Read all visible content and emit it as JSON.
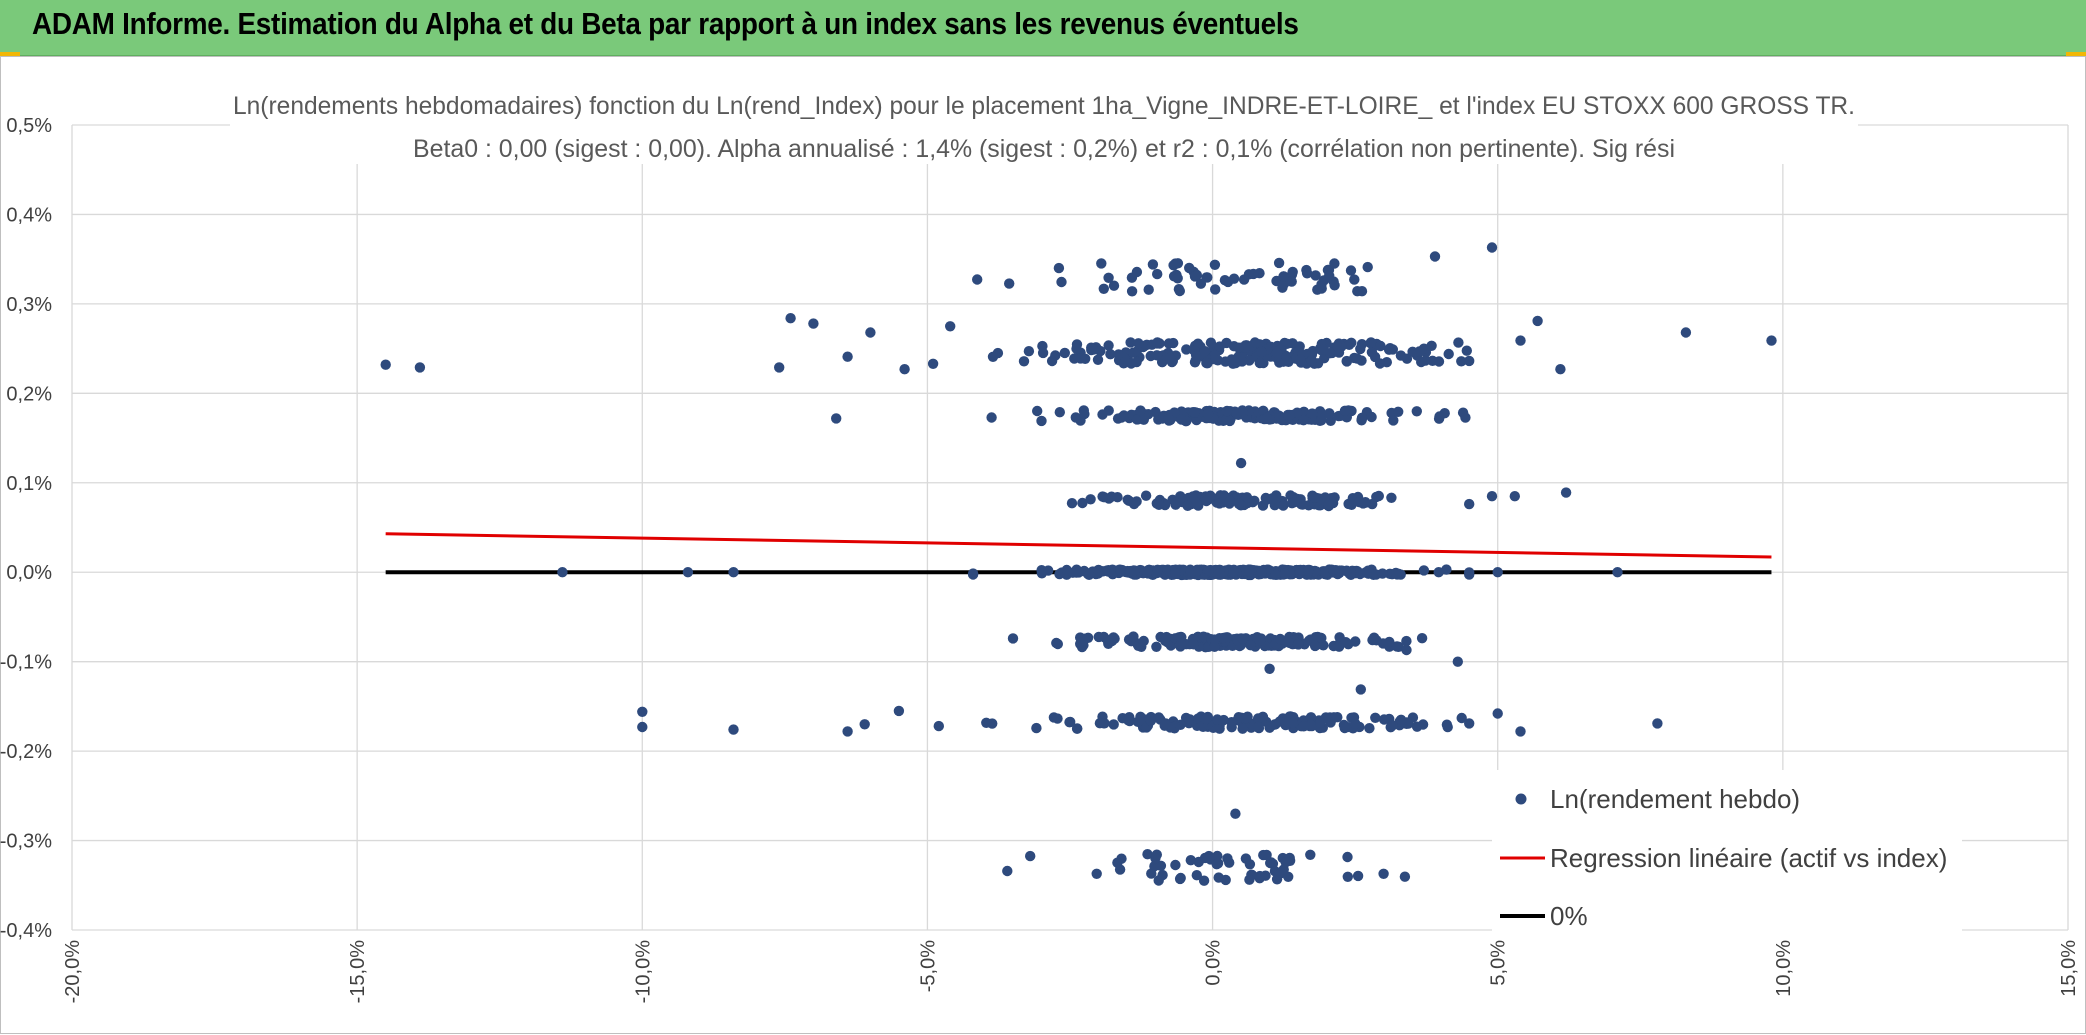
{
  "banner": {
    "title": "ADAM Informe. Estimation du Alpha et du Beta par rapport à un index sans les revenus éventuels",
    "background": "#7ac97a",
    "corner_color": "#f2b705"
  },
  "chart_data": {
    "type": "scatter",
    "title": "Ln(rendements hebdomadaires) fonction du Ln(rend_Index) pour le placement 1ha_Vigne_INDRE-ET-LOIRE_ et l'index EU STOXX 600 GROSS TR.",
    "subtitle": "Beta0 : 0,00 (sigest : 0,00). Alpha annualisé : 1,4% (sigest : 0,2%) et r2 : 0,1% (corrélation non pertinente). Sig rési",
    "xlabel": "",
    "ylabel": "",
    "xlim": [
      -20,
      15
    ],
    "ylim": [
      -0.4,
      0.5
    ],
    "x_ticks": [
      "-20,0%",
      "-15,0%",
      "-10,0%",
      "-5,0%",
      "0,0%",
      "5,0%",
      "10,0%",
      "15,0%"
    ],
    "y_ticks": [
      "0,5%",
      "0,4%",
      "0,3%",
      "0,2%",
      "0,1%",
      "0,0%",
      "-0,1%",
      "-0,2%",
      "-0,3%",
      "-0,4%"
    ],
    "grid": true,
    "legend_position": "bottom-right",
    "series": [
      {
        "name": "Ln(rendement hebdo)",
        "kind": "scatter",
        "color": "#2e4a7d",
        "clusters": [
          {
            "y": 0.0,
            "n": 420,
            "x_sd": 1.4,
            "jitter": 0.003
          },
          {
            "y": 0.08,
            "n": 130,
            "x_sd": 1.4,
            "jitter": 0.006
          },
          {
            "y": 0.175,
            "n": 170,
            "x_sd": 1.5,
            "jitter": 0.006
          },
          {
            "y": 0.245,
            "n": 210,
            "x_sd": 2.0,
            "jitter": 0.012
          },
          {
            "y": 0.33,
            "n": 65,
            "x_sd": 1.6,
            "jitter": 0.016
          },
          {
            "y": -0.078,
            "n": 160,
            "x_sd": 1.4,
            "jitter": 0.006
          },
          {
            "y": -0.168,
            "n": 150,
            "x_sd": 1.8,
            "jitter": 0.007
          },
          {
            "y": -0.33,
            "n": 60,
            "x_sd": 1.2,
            "jitter": 0.015
          }
        ],
        "points": [
          {
            "x": -14.5,
            "y": 0.232
          },
          {
            "x": -13.9,
            "y": 0.229
          },
          {
            "x": -7.6,
            "y": 0.229
          },
          {
            "x": -7.4,
            "y": 0.284
          },
          {
            "x": -7.0,
            "y": 0.278
          },
          {
            "x": -6.6,
            "y": 0.172
          },
          {
            "x": -6.4,
            "y": 0.241
          },
          {
            "x": -6.0,
            "y": 0.268
          },
          {
            "x": -5.4,
            "y": 0.227
          },
          {
            "x": -4.9,
            "y": 0.233
          },
          {
            "x": -4.6,
            "y": 0.275
          },
          {
            "x": -10.0,
            "y": -0.156
          },
          {
            "x": -10.0,
            "y": -0.173
          },
          {
            "x": -8.4,
            "y": -0.176
          },
          {
            "x": -6.4,
            "y": -0.178
          },
          {
            "x": -6.1,
            "y": -0.17
          },
          {
            "x": -5.5,
            "y": -0.155
          },
          {
            "x": -4.8,
            "y": -0.172
          },
          {
            "x": -11.4,
            "y": 0.0
          },
          {
            "x": -9.2,
            "y": 0.0
          },
          {
            "x": -8.4,
            "y": 0.0
          },
          {
            "x": 7.1,
            "y": 0.0
          },
          {
            "x": 5.0,
            "y": 0.0
          },
          {
            "x": 4.9,
            "y": 0.363
          },
          {
            "x": 5.7,
            "y": 0.281
          },
          {
            "x": 6.1,
            "y": 0.227
          },
          {
            "x": 8.3,
            "y": 0.268
          },
          {
            "x": 9.8,
            "y": 0.259
          },
          {
            "x": 5.4,
            "y": 0.259
          },
          {
            "x": 5.3,
            "y": 0.085
          },
          {
            "x": 6.2,
            "y": 0.089
          },
          {
            "x": 4.9,
            "y": 0.085
          },
          {
            "x": 4.3,
            "y": -0.1
          },
          {
            "x": 5.4,
            "y": -0.178
          },
          {
            "x": 5.0,
            "y": -0.158
          },
          {
            "x": 7.8,
            "y": -0.169
          },
          {
            "x": 3.9,
            "y": 0.353
          },
          {
            "x": 0.5,
            "y": 0.122
          },
          {
            "x": 1.0,
            "y": -0.108
          },
          {
            "x": 0.4,
            "y": -0.27
          },
          {
            "x": 2.6,
            "y": -0.131
          },
          {
            "x": -3.6,
            "y": -0.334
          },
          {
            "x": 3.4,
            "y": -0.087
          },
          {
            "x": -3.5,
            "y": -0.074
          }
        ]
      },
      {
        "name": "Regression linéaire (actif vs index)",
        "kind": "line",
        "color": "#e00000",
        "x": [
          -14.5,
          9.8
        ],
        "y": [
          0.043,
          0.017
        ]
      },
      {
        "name": "0%",
        "kind": "line",
        "color": "#000000",
        "x": [
          -14.5,
          9.8
        ],
        "y": [
          0.0,
          0.0
        ]
      }
    ]
  }
}
